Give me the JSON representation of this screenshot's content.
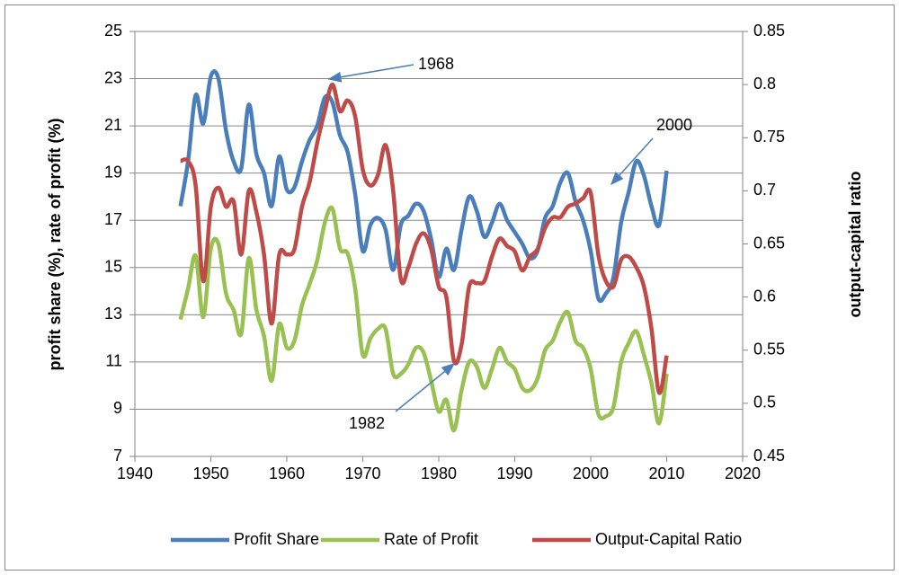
{
  "chart_data": {
    "type": "line",
    "x": [
      1946,
      1947,
      1948,
      1949,
      1950,
      1951,
      1952,
      1953,
      1954,
      1955,
      1956,
      1957,
      1958,
      1959,
      1960,
      1961,
      1962,
      1963,
      1964,
      1965,
      1966,
      1967,
      1968,
      1969,
      1970,
      1971,
      1972,
      1973,
      1974,
      1975,
      1976,
      1977,
      1978,
      1979,
      1980,
      1981,
      1982,
      1983,
      1984,
      1985,
      1986,
      1987,
      1988,
      1989,
      1990,
      1991,
      1992,
      1993,
      1994,
      1995,
      1996,
      1997,
      1998,
      1999,
      2000,
      2001,
      2002,
      2003,
      2004,
      2005,
      2006,
      2007,
      2008,
      2009,
      2010
    ],
    "series": [
      {
        "name": "Profit Share",
        "color": "#4a7ebb",
        "values": [
          17.6,
          19.5,
          22.3,
          21.1,
          23.1,
          23.0,
          20.8,
          19.5,
          19.2,
          21.9,
          19.8,
          19.0,
          17.6,
          19.7,
          18.3,
          18.4,
          19.5,
          20.4,
          21.0,
          22.2,
          22.0,
          20.6,
          19.9,
          18.1,
          15.7,
          16.8,
          17.1,
          16.6,
          14.9,
          16.8,
          17.2,
          17.7,
          17.4,
          16.2,
          14.6,
          15.8,
          14.9,
          16.6,
          18.0,
          17.4,
          16.3,
          16.9,
          17.7,
          17.0,
          16.5,
          16.0,
          15.4,
          15.7,
          17.1,
          17.6,
          18.6,
          19.0,
          17.8,
          17.0,
          15.7,
          13.7,
          13.9,
          14.6,
          16.9,
          18.2,
          19.5,
          18.9,
          17.6,
          16.8,
          19.1
        ]
      },
      {
        "name": "Rate of Profit",
        "color": "#98c152",
        "values": [
          12.8,
          14.1,
          15.5,
          12.9,
          15.8,
          16.0,
          13.9,
          13.2,
          12.2,
          15.4,
          13.2,
          12.1,
          10.2,
          12.6,
          11.6,
          11.9,
          13.4,
          14.3,
          15.3,
          16.9,
          17.5,
          15.8,
          15.6,
          14.1,
          11.3,
          12.0,
          12.4,
          12.4,
          10.5,
          10.5,
          10.9,
          11.6,
          11.4,
          10.2,
          8.9,
          9.4,
          8.1,
          9.8,
          11.0,
          10.8,
          9.9,
          10.7,
          11.6,
          11.0,
          10.7,
          9.9,
          9.8,
          10.3,
          11.5,
          11.9,
          12.7,
          13.1,
          11.9,
          11.6,
          10.7,
          8.8,
          8.7,
          9.1,
          11.0,
          11.8,
          12.3,
          11.3,
          10.1,
          8.4,
          10.5
        ]
      },
      {
        "name": "Output-Capital Ratio",
        "color": "#be4b48",
        "axis": "y2",
        "values": [
          0.728,
          0.728,
          0.705,
          0.615,
          0.685,
          0.703,
          0.685,
          0.69,
          0.64,
          0.7,
          0.68,
          0.64,
          0.575,
          0.64,
          0.64,
          0.645,
          0.685,
          0.708,
          0.745,
          0.775,
          0.8,
          0.775,
          0.785,
          0.77,
          0.72,
          0.705,
          0.715,
          0.743,
          0.7,
          0.617,
          0.628,
          0.65,
          0.66,
          0.645,
          0.61,
          0.6,
          0.54,
          0.555,
          0.61,
          0.613,
          0.615,
          0.638,
          0.655,
          0.648,
          0.643,
          0.625,
          0.638,
          0.645,
          0.665,
          0.675,
          0.675,
          0.685,
          0.688,
          0.693,
          0.698,
          0.64,
          0.615,
          0.61,
          0.635,
          0.638,
          0.628,
          0.61,
          0.57,
          0.51,
          0.545
        ]
      }
    ],
    "xlim": [
      1940,
      2020
    ],
    "xticks": [
      1940,
      1950,
      1960,
      1970,
      1980,
      1990,
      2000,
      2010,
      2020
    ],
    "ylim": [
      7,
      25
    ],
    "yticks": [
      7,
      9,
      11,
      13,
      15,
      17,
      19,
      21,
      23,
      25
    ],
    "y2lim": [
      0.45,
      0.85
    ],
    "y2ticks": [
      0.45,
      0.5,
      0.55,
      0.6,
      0.65,
      0.7,
      0.75,
      0.8,
      0.85
    ],
    "ylabel": "profit share (%), rate of profit (%)",
    "y2label": "output-capital ratio",
    "grid": true,
    "legend": "bottom",
    "annotations": [
      {
        "text": "1968"
      },
      {
        "text": "2000"
      },
      {
        "text": "1982"
      }
    ]
  }
}
